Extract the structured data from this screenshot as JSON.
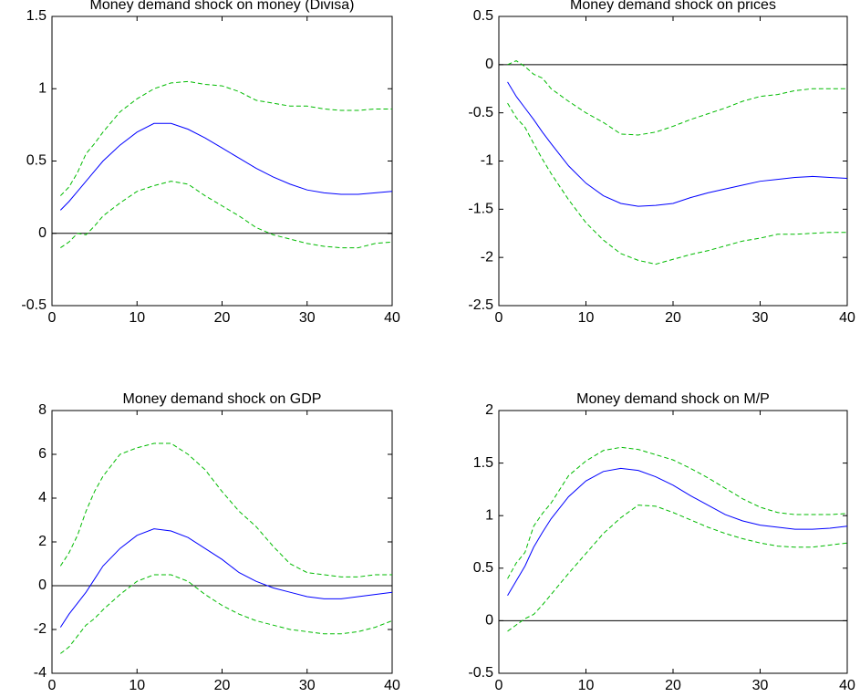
{
  "chart_data": [
    {
      "type": "line",
      "title": "Money demand shock on money (Divisa)",
      "x": [
        1,
        2,
        3,
        4,
        5,
        6,
        8,
        10,
        12,
        14,
        16,
        18,
        20,
        22,
        24,
        26,
        28,
        30,
        32,
        34,
        36,
        38,
        40
      ],
      "xlim": [
        0,
        40
      ],
      "xticks": [
        0,
        10,
        20,
        30,
        40
      ],
      "ylim": [
        -0.5,
        1.5
      ],
      "yticks": [
        -0.5,
        0,
        0.5,
        1,
        1.5
      ],
      "hline": 0,
      "series": [
        {
          "color": "#0000ff",
          "dash": false,
          "values": [
            0.16,
            0.22,
            0.29,
            0.36,
            0.43,
            0.5,
            0.61,
            0.7,
            0.76,
            0.76,
            0.72,
            0.66,
            0.59,
            0.52,
            0.45,
            0.39,
            0.34,
            0.3,
            0.28,
            0.27,
            0.27,
            0.28,
            0.29
          ]
        },
        {
          "color": "#00bb00",
          "dash": true,
          "values": [
            0.26,
            0.32,
            0.42,
            0.55,
            0.62,
            0.7,
            0.84,
            0.93,
            1.0,
            1.04,
            1.05,
            1.03,
            1.02,
            0.98,
            0.92,
            0.9,
            0.88,
            0.88,
            0.86,
            0.85,
            0.85,
            0.86,
            0.86
          ]
        },
        {
          "color": "#00bb00",
          "dash": true,
          "values": [
            -0.1,
            -0.06,
            0.0,
            -0.01,
            0.05,
            0.12,
            0.21,
            0.29,
            0.33,
            0.36,
            0.34,
            0.26,
            0.19,
            0.12,
            0.04,
            -0.01,
            -0.04,
            -0.07,
            -0.09,
            -0.1,
            -0.1,
            -0.07,
            -0.06
          ]
        }
      ]
    },
    {
      "type": "line",
      "title": "Money demand shock on prices",
      "x": [
        1,
        2,
        3,
        4,
        5,
        6,
        8,
        10,
        12,
        14,
        16,
        18,
        20,
        22,
        24,
        26,
        28,
        30,
        32,
        34,
        36,
        38,
        40
      ],
      "xlim": [
        0,
        40
      ],
      "xticks": [
        0,
        10,
        20,
        30,
        40
      ],
      "ylim": [
        -2.5,
        0.5
      ],
      "yticks": [
        -2.5,
        -2,
        -1.5,
        -1,
        -0.5,
        0,
        0.5
      ],
      "hline": 0,
      "series": [
        {
          "color": "#0000ff",
          "dash": false,
          "values": [
            -0.18,
            -0.33,
            -0.45,
            -0.57,
            -0.7,
            -0.82,
            -1.05,
            -1.23,
            -1.36,
            -1.44,
            -1.47,
            -1.46,
            -1.44,
            -1.38,
            -1.33,
            -1.29,
            -1.25,
            -1.21,
            -1.19,
            -1.17,
            -1.16,
            -1.17,
            -1.18
          ]
        },
        {
          "color": "#00bb00",
          "dash": true,
          "values": [
            0.0,
            0.04,
            -0.02,
            -0.1,
            -0.14,
            -0.25,
            -0.38,
            -0.5,
            -0.6,
            -0.72,
            -0.73,
            -0.7,
            -0.64,
            -0.57,
            -0.51,
            -0.45,
            -0.38,
            -0.33,
            -0.31,
            -0.27,
            -0.25,
            -0.25,
            -0.25
          ]
        },
        {
          "color": "#00bb00",
          "dash": true,
          "values": [
            -0.4,
            -0.55,
            -0.65,
            -0.82,
            -0.98,
            -1.13,
            -1.4,
            -1.64,
            -1.82,
            -1.96,
            -2.03,
            -2.07,
            -2.02,
            -1.97,
            -1.93,
            -1.88,
            -1.83,
            -1.8,
            -1.76,
            -1.76,
            -1.75,
            -1.74,
            -1.74
          ]
        }
      ]
    },
    {
      "type": "line",
      "title": "Money demand shock on GDP",
      "x": [
        1,
        2,
        3,
        4,
        5,
        6,
        8,
        10,
        12,
        14,
        16,
        18,
        20,
        22,
        24,
        26,
        28,
        30,
        32,
        34,
        36,
        38,
        40
      ],
      "xlim": [
        0,
        40
      ],
      "xticks": [
        0,
        10,
        20,
        30,
        40
      ],
      "ylim": [
        -4,
        8
      ],
      "yticks": [
        -4,
        -2,
        0,
        2,
        4,
        6,
        8
      ],
      "hline": 0,
      "series": [
        {
          "color": "#0000ff",
          "dash": false,
          "values": [
            -1.9,
            -1.3,
            -0.8,
            -0.3,
            0.3,
            0.9,
            1.7,
            2.3,
            2.6,
            2.5,
            2.2,
            1.7,
            1.2,
            0.6,
            0.2,
            -0.1,
            -0.3,
            -0.5,
            -0.6,
            -0.6,
            -0.5,
            -0.4,
            -0.3
          ]
        },
        {
          "color": "#00bb00",
          "dash": true,
          "values": [
            0.9,
            1.5,
            2.3,
            3.4,
            4.3,
            5.0,
            6.0,
            6.3,
            6.5,
            6.5,
            6.0,
            5.3,
            4.3,
            3.4,
            2.7,
            1.8,
            1.0,
            0.6,
            0.5,
            0.4,
            0.4,
            0.5,
            0.5
          ]
        },
        {
          "color": "#00bb00",
          "dash": true,
          "values": [
            -3.1,
            -2.8,
            -2.3,
            -1.8,
            -1.5,
            -1.1,
            -0.4,
            0.2,
            0.5,
            0.5,
            0.2,
            -0.4,
            -0.9,
            -1.3,
            -1.6,
            -1.8,
            -2.0,
            -2.1,
            -2.2,
            -2.2,
            -2.1,
            -1.9,
            -1.6
          ]
        }
      ]
    },
    {
      "type": "line",
      "title": "Money demand shock on M/P",
      "x": [
        1,
        2,
        3,
        4,
        5,
        6,
        8,
        10,
        12,
        14,
        16,
        18,
        20,
        22,
        24,
        26,
        28,
        30,
        32,
        34,
        36,
        38,
        40
      ],
      "xlim": [
        0,
        40
      ],
      "xticks": [
        0,
        10,
        20,
        30,
        40
      ],
      "ylim": [
        -0.5,
        2
      ],
      "yticks": [
        -0.5,
        0,
        0.5,
        1,
        1.5,
        2
      ],
      "hline": 0,
      "series": [
        {
          "color": "#0000ff",
          "dash": false,
          "values": [
            0.24,
            0.38,
            0.52,
            0.7,
            0.84,
            0.97,
            1.18,
            1.33,
            1.42,
            1.45,
            1.43,
            1.37,
            1.29,
            1.19,
            1.1,
            1.01,
            0.95,
            0.91,
            0.89,
            0.87,
            0.87,
            0.88,
            0.9
          ]
        },
        {
          "color": "#00bb00",
          "dash": true,
          "values": [
            0.4,
            0.55,
            0.65,
            0.9,
            1.02,
            1.12,
            1.38,
            1.52,
            1.62,
            1.65,
            1.63,
            1.58,
            1.53,
            1.45,
            1.36,
            1.26,
            1.16,
            1.08,
            1.03,
            1.01,
            1.01,
            1.01,
            1.02
          ]
        },
        {
          "color": "#00bb00",
          "dash": true,
          "values": [
            -0.1,
            -0.04,
            0.02,
            0.06,
            0.15,
            0.25,
            0.45,
            0.64,
            0.83,
            0.98,
            1.1,
            1.09,
            1.03,
            0.96,
            0.89,
            0.83,
            0.78,
            0.74,
            0.71,
            0.7,
            0.7,
            0.72,
            0.74
          ]
        }
      ]
    }
  ]
}
